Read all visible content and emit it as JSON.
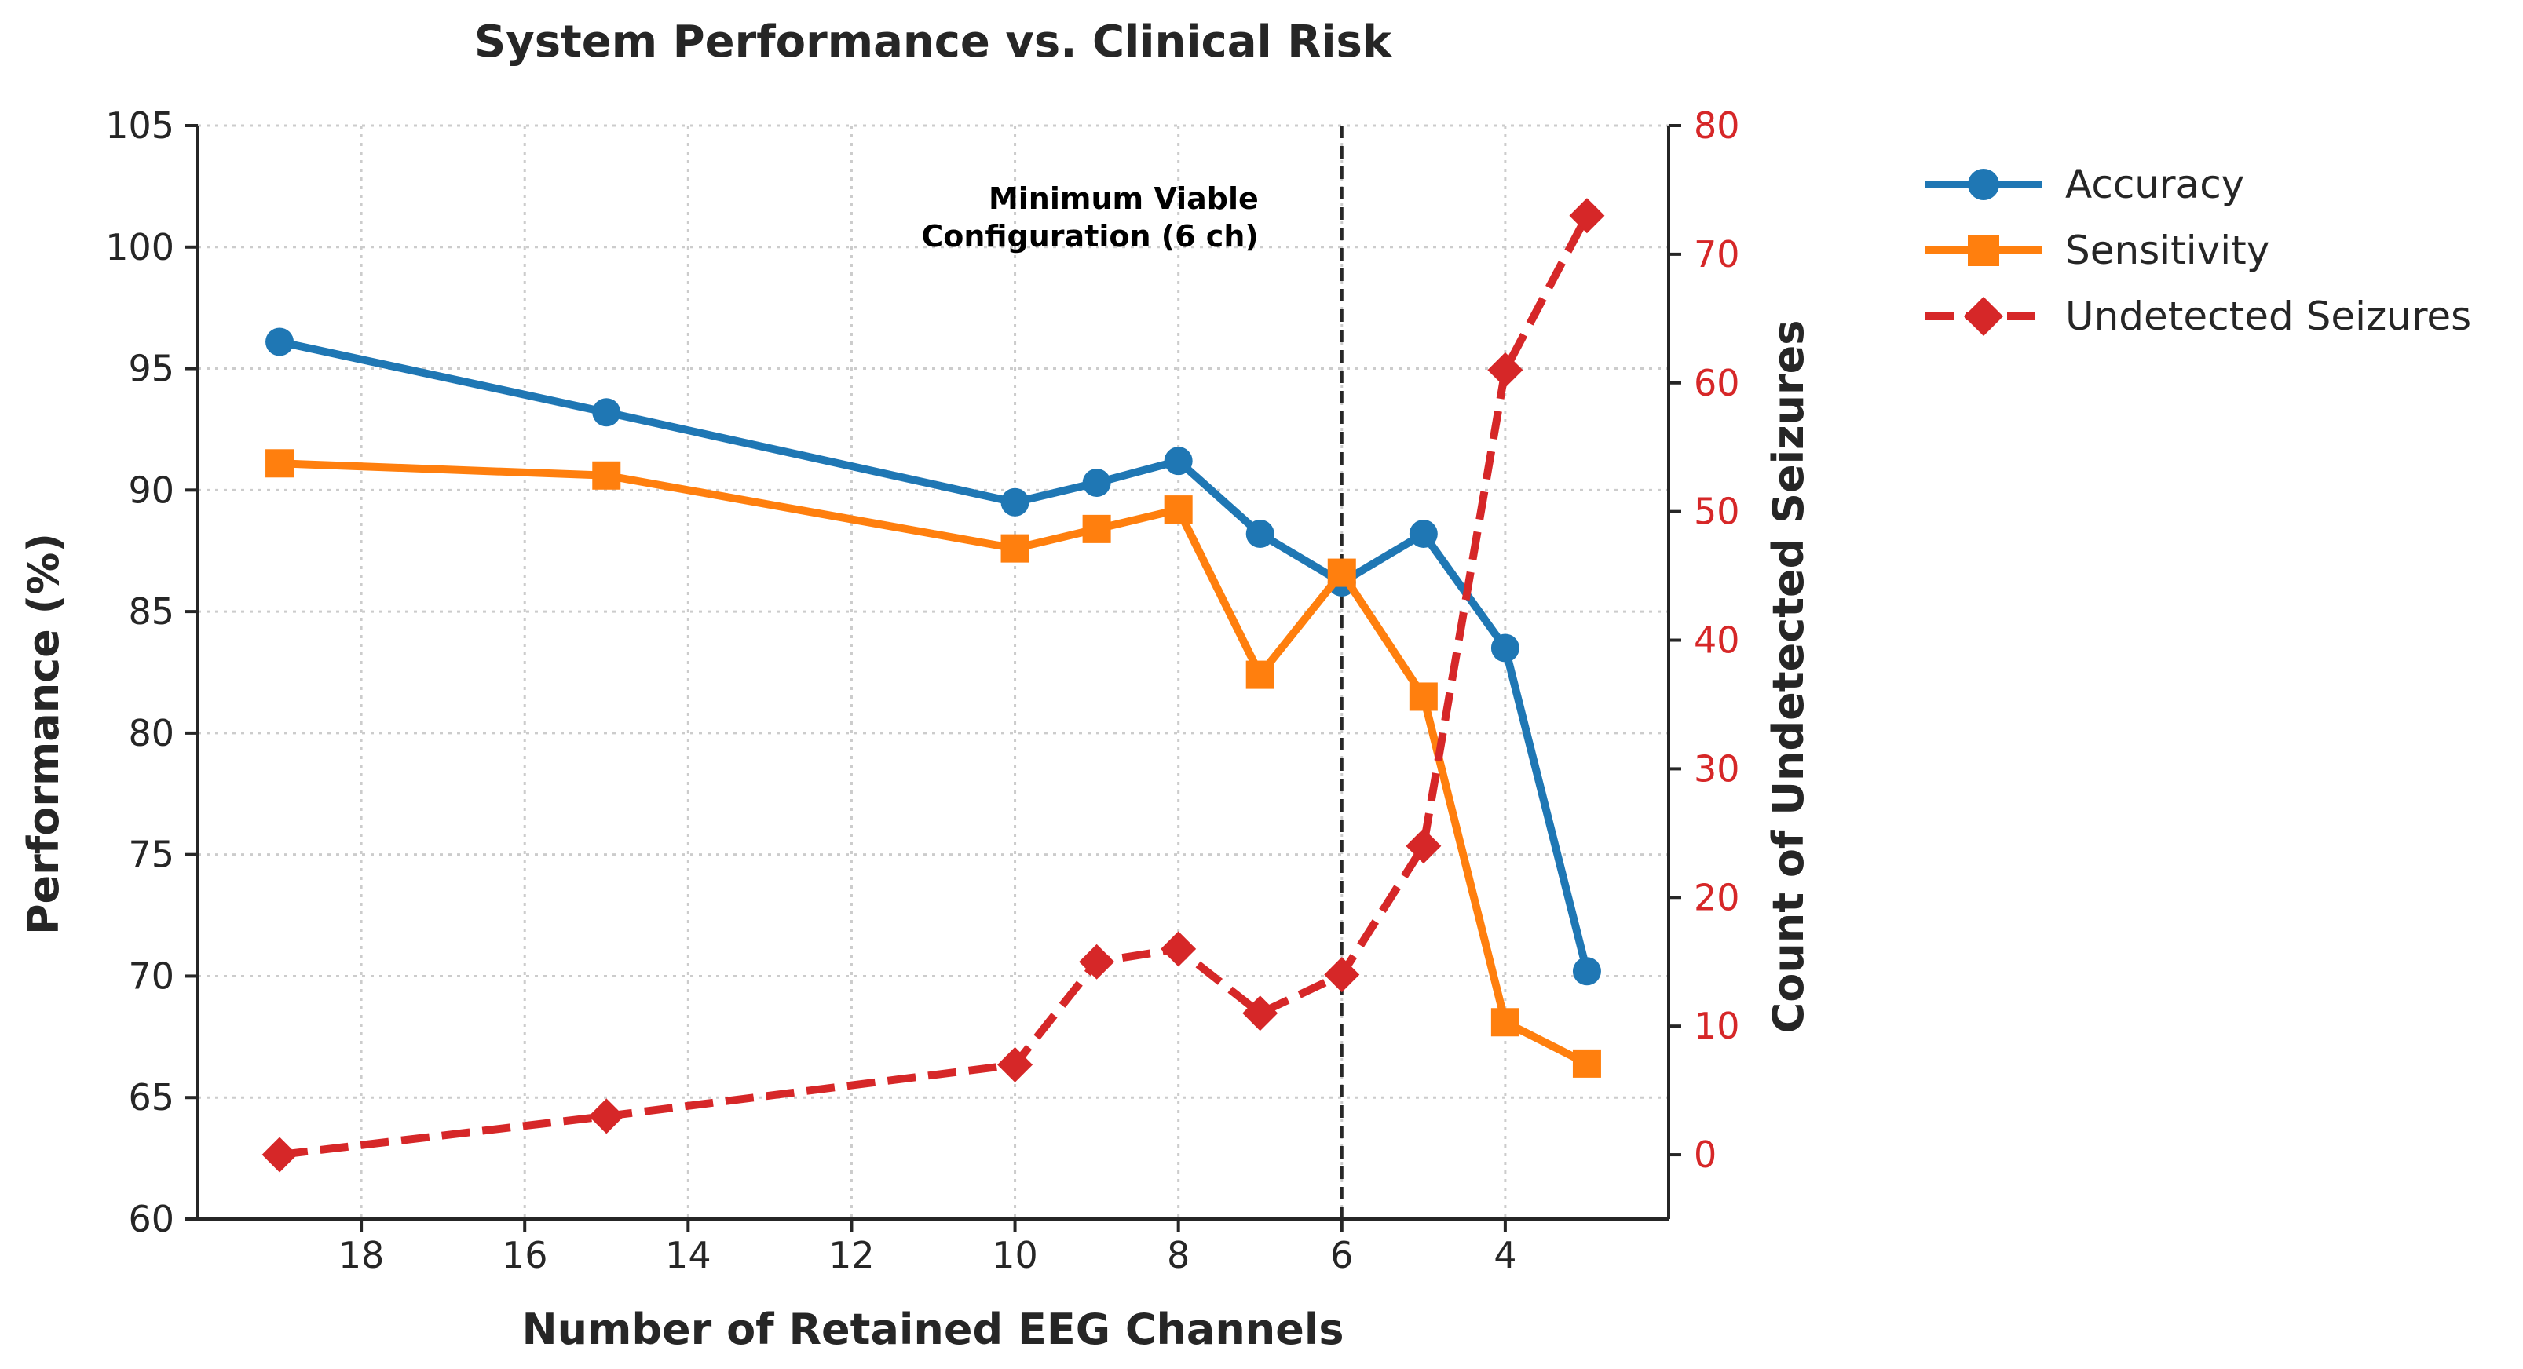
{
  "chart_data": {
    "type": "line",
    "title": "System Performance vs. Clinical Risk",
    "xlabel": "Number of Retained EEG Channels",
    "ylabel": "Performance (%)",
    "y2label": "Count of Undetected Seizures",
    "x": [
      19,
      15,
      10,
      9,
      8,
      7,
      6,
      5,
      4,
      3
    ],
    "xlim": [
      20.0,
      2.0
    ],
    "x_inverted": true,
    "xticks": [
      18,
      16,
      14,
      12,
      10,
      8,
      6,
      4
    ],
    "ylim": [
      60,
      105
    ],
    "yticks": [
      60,
      65,
      70,
      75,
      80,
      85,
      90,
      95,
      100,
      105
    ],
    "y2lim": [
      -5,
      80
    ],
    "y2ticks": [
      0,
      10,
      20,
      30,
      40,
      50,
      60,
      70,
      80
    ],
    "grid": true,
    "legend_position": "outside-top-right",
    "series": [
      {
        "name": "Accuracy",
        "axis": "left",
        "color": "#1f77b4",
        "marker": "circle",
        "dash": "solid",
        "values": [
          96.1,
          93.2,
          89.5,
          90.3,
          91.2,
          88.2,
          86.2,
          88.2,
          83.5,
          70.2
        ]
      },
      {
        "name": "Sensitivity",
        "axis": "left",
        "color": "#ff7f0e",
        "marker": "square",
        "dash": "solid",
        "values": [
          91.1,
          90.6,
          87.6,
          88.4,
          89.2,
          82.4,
          86.6,
          81.5,
          68.1,
          66.4
        ]
      },
      {
        "name": "Undetected Seizures",
        "axis": "right",
        "color": "#d62728",
        "marker": "diamond",
        "dash": "dashed",
        "values": [
          0,
          3,
          7,
          15,
          16,
          11,
          14,
          24,
          61,
          73
        ]
      }
    ],
    "annotations": [
      {
        "x": 6,
        "type": "vline",
        "color": "#262626",
        "dash": "dashed",
        "text_lines": [
          "Minimum Viable",
          "Configuration (6 ch)"
        ]
      }
    ],
    "right_axis_color": "#d62728"
  }
}
